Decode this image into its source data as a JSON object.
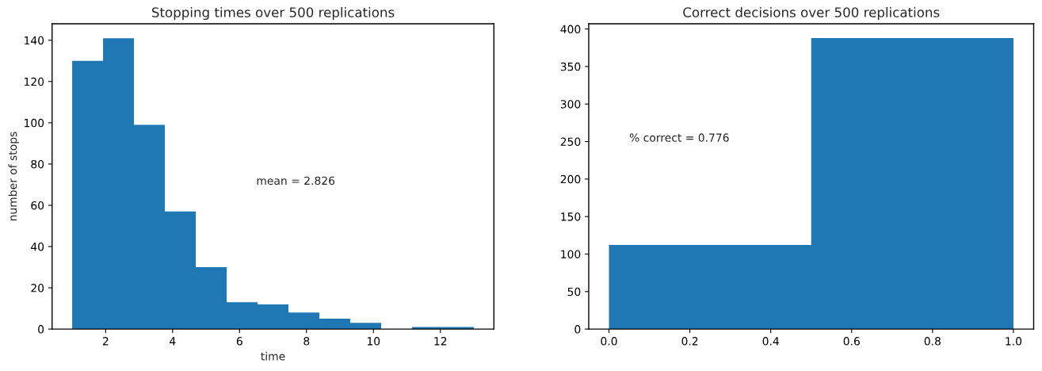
{
  "chart_data": [
    {
      "type": "histogram",
      "title": "Stopping times over 500 replications",
      "xlabel": "time",
      "ylabel": "number of stops",
      "bins": [
        1,
        1.923,
        2.846,
        3.769,
        4.692,
        5.615,
        6.538,
        7.462,
        8.385,
        9.308,
        10.231,
        11.154,
        12.077,
        13
      ],
      "values": [
        130,
        141,
        99,
        57,
        30,
        13,
        12,
        8,
        5,
        3,
        0,
        1,
        1
      ],
      "color": "#1f77b4",
      "xlim": [
        0.4,
        13.6
      ],
      "xticks": [
        2,
        4,
        6,
        8,
        10,
        12
      ],
      "ylim": [
        0,
        148
      ],
      "yticks": [
        0,
        20,
        40,
        60,
        80,
        100,
        120,
        140
      ],
      "annotations": [
        "mean = 2.826"
      ],
      "grid": false
    },
    {
      "type": "histogram",
      "title": "Correct decisions over 500 replications",
      "bins": [
        0,
        0.5,
        1
      ],
      "values": [
        112,
        388
      ],
      "color": "#1f77b4",
      "xlim": [
        -0.05,
        1.05
      ],
      "xticks": [
        {
          "value": 0,
          "label": "0.0"
        },
        {
          "value": 0.2,
          "label": "0.2"
        },
        {
          "value": 0.4,
          "label": "0.4"
        },
        {
          "value": 0.6,
          "label": "0.6"
        },
        {
          "value": 0.8,
          "label": "0.8"
        },
        {
          "value": 1,
          "label": "1.0"
        }
      ],
      "ylim": [
        0,
        407
      ],
      "yticks": [
        0,
        50,
        100,
        150,
        200,
        250,
        300,
        350,
        400
      ],
      "annotations": [
        "% correct = 0.776"
      ],
      "grid": false
    }
  ]
}
